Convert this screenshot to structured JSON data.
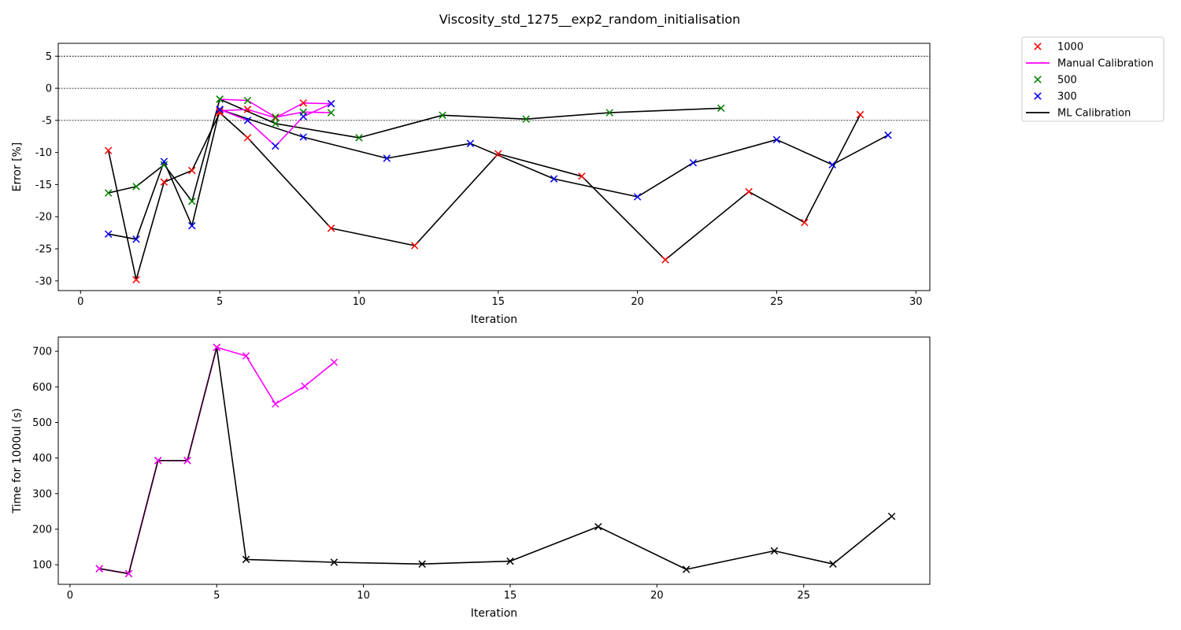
{
  "title": "Viscosity_std_1275__exp2_random_initialisation",
  "legend": {
    "placement": "outside-right-top",
    "entries": [
      {
        "label": "1000",
        "kind": "marker",
        "color": "#ff0000"
      },
      {
        "label": "Manual Calibration",
        "kind": "line",
        "color": "#ff00ff"
      },
      {
        "label": "500",
        "kind": "marker",
        "color": "#008000"
      },
      {
        "label": "300",
        "kind": "marker",
        "color": "#0000ff"
      },
      {
        "label": "ML Calibration",
        "kind": "line",
        "color": "#000000"
      }
    ]
  },
  "chart_data": [
    {
      "type": "line",
      "xlabel": "Iteration",
      "ylabel": "Error [%]",
      "xlim": [
        -0.8,
        30.5
      ],
      "ylim": [
        -31.5,
        7
      ],
      "xticks": [
        0,
        5,
        10,
        15,
        20,
        25,
        30
      ],
      "yticks": [
        -30,
        -25,
        -20,
        -15,
        -10,
        -5,
        0,
        5
      ],
      "reference_lines": [
        5,
        0,
        -5
      ],
      "grid": false,
      "series": [
        {
          "name": "1000",
          "role": "ML Calibration",
          "color": "#ff0000",
          "line_color": "#000000",
          "x": [
            1,
            2,
            3,
            4,
            5,
            6,
            9,
            12,
            15,
            18,
            21,
            24,
            26,
            28
          ],
          "y": [
            -9.7,
            -29.8,
            -14.6,
            -12.8,
            -3.8,
            -7.7,
            -21.8,
            -24.5,
            -10.2,
            -13.7,
            -26.7,
            -16.1,
            -20.9,
            -4.1
          ]
        },
        {
          "name": "1000",
          "role": "Manual Calibration",
          "color": "#ff0000",
          "line_color": "#ff00ff",
          "x": [
            5,
            6,
            7,
            8,
            9
          ],
          "y": [
            -3.5,
            -3.3,
            -4.6,
            -2.3,
            -2.4
          ]
        },
        {
          "name": "500",
          "role": "ML Calibration",
          "color": "#008000",
          "line_color": "#000000",
          "x": [
            1,
            2,
            3,
            4,
            5,
            7,
            10,
            13,
            16,
            19,
            23
          ],
          "y": [
            -16.3,
            -15.3,
            -11.9,
            -17.6,
            -1.7,
            -5.5,
            -7.7,
            -4.2,
            -4.8,
            -3.8,
            -3.1
          ]
        },
        {
          "name": "500",
          "role": "Manual Calibration",
          "color": "#008000",
          "line_color": "#ff00ff",
          "x": [
            5,
            6,
            7,
            8,
            9
          ],
          "y": [
            -1.7,
            -1.9,
            -4.5,
            -3.7,
            -3.8
          ]
        },
        {
          "name": "300",
          "role": "ML Calibration",
          "color": "#0000ff",
          "line_color": "#000000",
          "x": [
            1,
            2,
            3,
            4,
            5,
            8,
            11,
            14,
            17,
            20,
            22,
            25,
            27,
            29
          ],
          "y": [
            -22.7,
            -23.5,
            -11.4,
            -21.4,
            -3.3,
            -7.6,
            -10.9,
            -8.6,
            -14.1,
            -16.9,
            -11.6,
            -8.0,
            -11.9,
            -7.3
          ]
        },
        {
          "name": "300",
          "role": "Manual Calibration",
          "color": "#0000ff",
          "line_color": "#ff00ff",
          "x": [
            5,
            6,
            7,
            8,
            9
          ],
          "y": [
            -3.3,
            -5.0,
            -9.0,
            -4.4,
            -2.4
          ]
        }
      ]
    },
    {
      "type": "line",
      "xlabel": "Iteration",
      "ylabel": "Time for 1000ul (s)",
      "xlim": [
        -0.4,
        29.3
      ],
      "ylim": [
        45,
        740
      ],
      "xticks": [
        0,
        5,
        10,
        15,
        20,
        25
      ],
      "yticks": [
        100,
        200,
        300,
        400,
        500,
        600,
        700
      ],
      "grid": false,
      "series": [
        {
          "name": "ML Calibration",
          "color": "#000000",
          "x": [
            1,
            2,
            3,
            4,
            5,
            6,
            9,
            12,
            15,
            18,
            21,
            24,
            26,
            28
          ],
          "y": [
            89,
            75,
            393,
            393,
            711,
            115,
            107,
            102,
            110,
            207,
            87,
            139,
            102,
            236
          ]
        },
        {
          "name": "Manual Calibration",
          "color": "#ff00ff",
          "x": [
            1,
            2,
            3,
            4,
            5,
            6,
            7,
            8,
            9
          ],
          "y": [
            89,
            75,
            393,
            393,
            711,
            687,
            552,
            602,
            669
          ]
        }
      ]
    }
  ]
}
